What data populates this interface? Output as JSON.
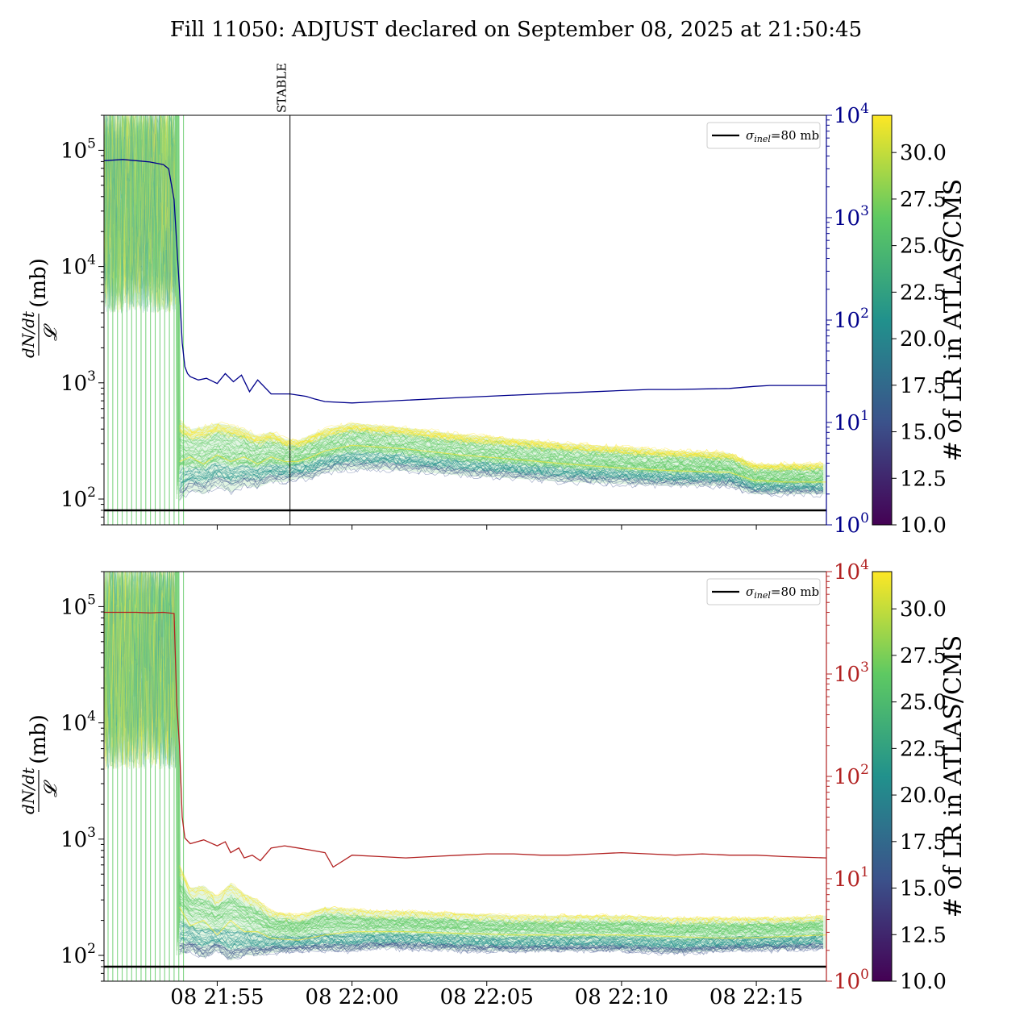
{
  "figure": {
    "title": "Fill 11050: ADJUST declared on September 08, 2025 at 21:50:45"
  },
  "colors": {
    "axis": "#000000",
    "top_right_axis": "#00008b",
    "bottom_right_axis": "#b22222",
    "baseline": "#000000",
    "viridis": [
      "#440154",
      "#3b528b",
      "#21918c",
      "#5ec962",
      "#fde725"
    ]
  },
  "chart_data": [
    {
      "type": "line",
      "panel": "top",
      "ylabel_num": "dN/dt",
      "ylabel_den": "𝓛",
      "ylabel_unit": "(mb)",
      "yscale": "log",
      "ylim": [
        60,
        200000
      ],
      "yticks": [
        {
          "value": 100,
          "base": "10",
          "exp": "2"
        },
        {
          "value": 1000,
          "base": "10",
          "exp": "3"
        },
        {
          "value": 10000,
          "base": "10",
          "exp": "4"
        },
        {
          "value": 100000,
          "base": "10",
          "exp": "5"
        }
      ],
      "y2scale": "log",
      "y2lim": [
        1,
        10000
      ],
      "y2ticks": [
        {
          "value": 1,
          "base": "10",
          "exp": "0"
        },
        {
          "value": 10,
          "base": "10",
          "exp": "1"
        },
        {
          "value": 100,
          "base": "10",
          "exp": "2"
        },
        {
          "value": 1000,
          "base": "10",
          "exp": "3"
        },
        {
          "value": 10000,
          "base": "10",
          "exp": "4"
        }
      ],
      "xlim_minutes_after_2150": [
        0.8,
        27.6
      ],
      "xticks": [
        {
          "minute": 5,
          "label": "08 21:55"
        },
        {
          "minute": 10,
          "label": "08 22:00"
        },
        {
          "minute": 15,
          "label": "08 22:05"
        },
        {
          "minute": 20,
          "label": "08 22:10"
        },
        {
          "minute": 25,
          "label": "08 22:15"
        }
      ],
      "vline": {
        "minute": 7.7,
        "label": "STABLE"
      },
      "legend": {
        "label_sym": "σ",
        "label_sub": "inel",
        "label_rest": "=80 mb",
        "placement": "top-right"
      },
      "baseline_mb": 80,
      "band": {
        "x": [
          3.6,
          4.0,
          4.5,
          5.0,
          5.5,
          6.0,
          6.5,
          7.0,
          7.5,
          8.0,
          8.5,
          9.0,
          10.0,
          11.0,
          12.0,
          14.0,
          16.0,
          18.0,
          20.0,
          22.0,
          24.0,
          24.9,
          26.0,
          27.6
        ],
        "low": [
          95,
          120,
          110,
          130,
          115,
          130,
          125,
          140,
          140,
          150,
          150,
          170,
          180,
          180,
          175,
          160,
          150,
          140,
          135,
          130,
          130,
          110,
          110,
          110
        ],
        "mid": [
          210,
          230,
          200,
          240,
          210,
          230,
          200,
          230,
          210,
          210,
          230,
          260,
          290,
          280,
          270,
          240,
          220,
          200,
          185,
          175,
          170,
          145,
          140,
          140
        ],
        "high": [
          480,
          400,
          420,
          450,
          430,
          400,
          350,
          380,
          330,
          320,
          360,
          400,
          450,
          430,
          410,
          360,
          330,
          300,
          280,
          260,
          250,
          200,
          200,
          200
        ]
      },
      "series": [
        {
          "name": "",
          "axis": "right",
          "x": [
            0.8,
            1.5,
            2.0,
            2.5,
            3.0,
            3.2,
            3.4,
            3.6,
            3.7,
            3.8,
            3.9,
            4.0,
            4.3,
            4.6,
            5.0,
            5.3,
            5.6,
            5.9,
            6.2,
            6.5,
            7.0,
            7.7,
            8.3,
            8.6,
            9.0,
            10.0,
            11.0,
            12.0,
            14.0,
            16.0,
            18.0,
            19.0,
            20.0,
            21.0,
            22.0,
            24.0,
            24.9,
            25.5,
            27.6
          ],
          "values": [
            3600,
            3700,
            3600,
            3500,
            3300,
            3000,
            1500,
            200,
            60,
            35,
            30,
            28,
            26,
            27,
            24,
            30,
            25,
            29,
            20,
            26,
            19,
            19,
            18,
            17,
            16,
            15.5,
            16,
            16.5,
            17.5,
            18.5,
            19.5,
            20,
            20.5,
            21,
            21,
            21.5,
            22.5,
            23,
            23
          ]
        }
      ],
      "colorbar": {
        "label": "# of LR in ATLAS/CMS",
        "min": 10,
        "max": 32,
        "ticks": [
          "10.0",
          "12.5",
          "15.0",
          "17.5",
          "20.0",
          "22.5",
          "25.0",
          "27.5",
          "30.0"
        ]
      }
    },
    {
      "type": "line",
      "panel": "bottom",
      "ylabel_num": "dN/dt",
      "ylabel_den": "𝓛",
      "ylabel_unit": "(mb)",
      "yscale": "log",
      "ylim": [
        60,
        200000
      ],
      "yticks": [
        {
          "value": 100,
          "base": "10",
          "exp": "2"
        },
        {
          "value": 1000,
          "base": "10",
          "exp": "3"
        },
        {
          "value": 10000,
          "base": "10",
          "exp": "4"
        },
        {
          "value": 100000,
          "base": "10",
          "exp": "5"
        }
      ],
      "y2scale": "log",
      "y2lim": [
        1,
        10000
      ],
      "y2ticks": [
        {
          "value": 1,
          "base": "10",
          "exp": "0"
        },
        {
          "value": 10,
          "base": "10",
          "exp": "1"
        },
        {
          "value": 100,
          "base": "10",
          "exp": "2"
        },
        {
          "value": 1000,
          "base": "10",
          "exp": "3"
        },
        {
          "value": 10000,
          "base": "10",
          "exp": "4"
        }
      ],
      "xlim_minutes_after_2150": [
        0.8,
        27.6
      ],
      "xticks": [
        {
          "minute": 5,
          "label": "08 21:55"
        },
        {
          "minute": 10,
          "label": "08 22:00"
        },
        {
          "minute": 15,
          "label": "08 22:05"
        },
        {
          "minute": 20,
          "label": "08 22:10"
        },
        {
          "minute": 25,
          "label": "08 22:15"
        }
      ],
      "legend": {
        "label_sym": "σ",
        "label_sub": "inel",
        "label_rest": "=80 mb",
        "placement": "top-right"
      },
      "baseline_mb": 80,
      "band": {
        "x": [
          3.6,
          4.0,
          4.5,
          5.0,
          5.5,
          6.0,
          6.5,
          7.0,
          8.0,
          9.0,
          10.0,
          11.0,
          12.0,
          14.0,
          16.0,
          18.0,
          20.0,
          22.0,
          24.0,
          26.0,
          27.6
        ],
        "low": [
          100,
          110,
          95,
          110,
          90,
          100,
          100,
          105,
          110,
          110,
          110,
          115,
          115,
          110,
          108,
          110,
          110,
          105,
          110,
          112,
          115
        ],
        "mid": [
          260,
          180,
          200,
          150,
          200,
          160,
          160,
          140,
          135,
          150,
          160,
          160,
          160,
          155,
          150,
          150,
          150,
          145,
          140,
          145,
          150
        ],
        "high": [
          600,
          380,
          400,
          320,
          420,
          340,
          300,
          240,
          220,
          260,
          250,
          240,
          240,
          230,
          220,
          220,
          220,
          210,
          210,
          210,
          220
        ]
      },
      "series": [
        {
          "name": "",
          "axis": "right",
          "x": [
            0.8,
            1.5,
            2.0,
            2.5,
            3.0,
            3.4,
            3.5,
            3.6,
            3.7,
            3.8,
            4.0,
            4.5,
            5.0,
            5.3,
            5.5,
            5.8,
            6.0,
            6.3,
            6.6,
            7.0,
            7.5,
            8.0,
            8.5,
            9.0,
            9.3,
            10.0,
            11.0,
            12.0,
            13.0,
            14.0,
            15.0,
            16.0,
            17.0,
            18.0,
            19.0,
            20.0,
            21.0,
            22.0,
            23.0,
            24.0,
            25.0,
            26.0,
            27.6
          ],
          "values": [
            4000,
            4000,
            4000,
            3950,
            4000,
            3900,
            500,
            200,
            40,
            25,
            22,
            24,
            21,
            23,
            18,
            20,
            16,
            17,
            15,
            20,
            21,
            20,
            19,
            18,
            13,
            17,
            16.5,
            16,
            16.5,
            17,
            17.5,
            17.5,
            17,
            17,
            17.5,
            18,
            17.5,
            17,
            17.5,
            17,
            17,
            16.5,
            16
          ]
        }
      ],
      "colorbar": {
        "label": "# of LR in ATLAS/CMS",
        "min": 10,
        "max": 32,
        "ticks": [
          "10.0",
          "12.5",
          "15.0",
          "17.5",
          "20.0",
          "22.5",
          "25.0",
          "27.5",
          "30.0"
        ]
      }
    }
  ]
}
